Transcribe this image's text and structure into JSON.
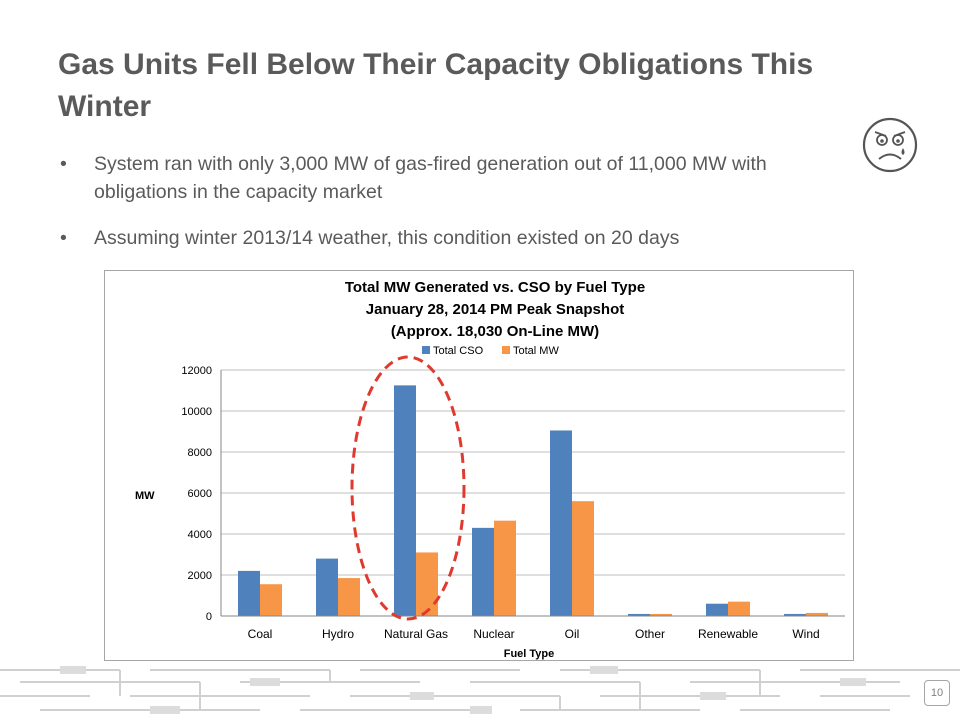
{
  "slide": {
    "title": "Gas Units Fell Below Their Capacity Obligations This Winter",
    "bullets": [
      "System ran with only 3,000 MW of gas-fired generation out of 11,000 MW with obligations in the capacity market",
      "Assuming winter 2013/14 weather, this condition existed on 20 days"
    ],
    "page_number": "10",
    "icons": {
      "face": "sad-face-icon"
    }
  },
  "chart_data": {
    "type": "bar",
    "title_lines": [
      "Total MW Generated vs. CSO by Fuel Type",
      "January 28, 2014 PM Peak Snapshot",
      "(Approx. 18,030 On-Line MW)"
    ],
    "xlabel": "Fuel Type",
    "ylabel": "MW",
    "ylim": [
      0,
      12000
    ],
    "yticks": [
      0,
      2000,
      4000,
      6000,
      8000,
      10000,
      12000
    ],
    "grid": true,
    "legend_position": "top",
    "categories": [
      "Coal",
      "Hydro",
      "Natural Gas",
      "Nuclear",
      "Oil",
      "Other",
      "Renewable",
      "Wind"
    ],
    "series": [
      {
        "name": "Total CSO",
        "color": "#4f81bd",
        "values": [
          2200,
          2800,
          11250,
          4300,
          9050,
          100,
          600,
          100
        ]
      },
      {
        "name": "Total MW",
        "color": "#f79646",
        "values": [
          1550,
          1850,
          3100,
          4650,
          5600,
          100,
          700,
          150
        ]
      }
    ],
    "highlight": {
      "category": "Natural Gas",
      "style": "dashed-ellipse",
      "color": "#e03a2f"
    }
  }
}
